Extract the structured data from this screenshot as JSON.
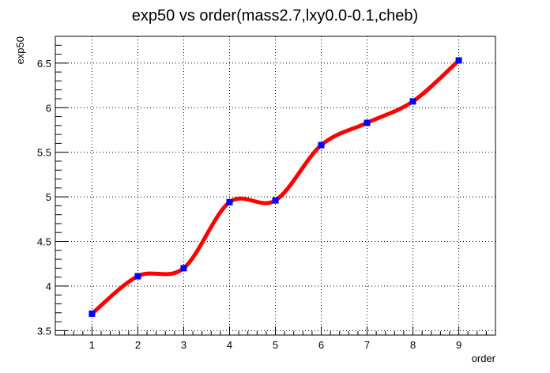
{
  "chart_data": {
    "type": "line",
    "title": "exp50 vs order(mass2.7,lxy0.0-0.1,cheb)",
    "xlabel": "order",
    "ylabel": "exp50",
    "xlim": [
      0.2,
      9.8
    ],
    "ylim": [
      3.45,
      6.8
    ],
    "x_ticks": [
      1,
      2,
      3,
      4,
      5,
      6,
      7,
      8,
      9
    ],
    "y_ticks": [
      3.5,
      4,
      4.5,
      5,
      5.5,
      6,
      6.5
    ],
    "grid": true,
    "legend": "none",
    "series": [
      {
        "x": [
          1,
          2,
          3,
          4,
          5,
          6,
          7,
          8,
          9
        ],
        "y": [
          3.69,
          4.11,
          4.2,
          4.94,
          4.96,
          5.58,
          5.83,
          6.07,
          6.53
        ],
        "line_color": "#ff0000",
        "marker_color": "#0000ff",
        "marker": "square",
        "smooth": true
      }
    ]
  }
}
